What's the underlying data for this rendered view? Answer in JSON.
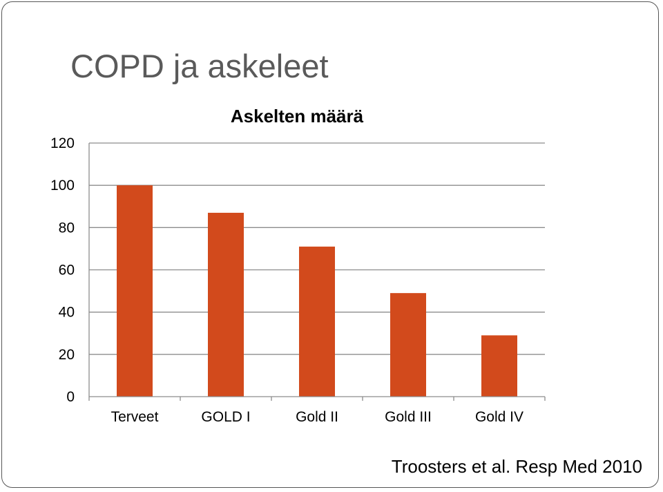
{
  "slide": {
    "title": "COPD ja askeleet",
    "citation": "Troosters et al. Resp Med 2010"
  },
  "chart_data": {
    "type": "bar",
    "title": "Askelten määrä",
    "xlabel": "",
    "ylabel": "",
    "categories": [
      "Terveet",
      "GOLD I",
      "Gold II",
      "Gold III",
      "Gold IV"
    ],
    "values": [
      100,
      87,
      71,
      49,
      29
    ],
    "ylim": [
      0,
      120
    ],
    "yticks": [
      0,
      20,
      40,
      60,
      80,
      100,
      120
    ],
    "grid": true,
    "legend": "none",
    "bar_color": "#D24A1C",
    "grid_color": "#8C8C8C"
  }
}
